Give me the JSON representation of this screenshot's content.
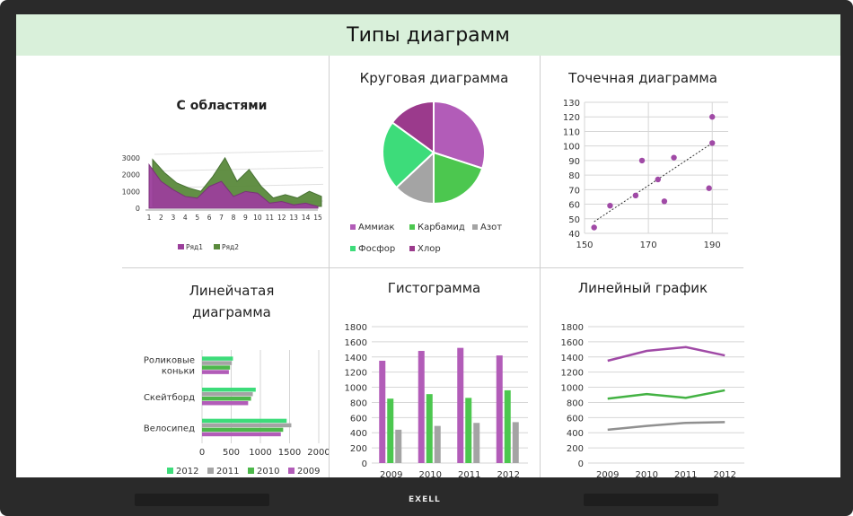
{
  "title": "Типы диаграмм",
  "brand": "EXELL",
  "chart_data": [
    {
      "type": "area",
      "title": "С областями",
      "categories": [
        "1",
        "2",
        "3",
        "4",
        "5",
        "6",
        "7",
        "8",
        "9",
        "10",
        "11",
        "12",
        "13",
        "14",
        "15"
      ],
      "ylim": [
        0,
        3000
      ],
      "yticks": [
        0,
        1000,
        2000,
        3000
      ],
      "series": [
        {
          "name": "Ряд1",
          "color": "#9b3f9b",
          "values": [
            2600,
            1600,
            1100,
            700,
            600,
            1300,
            1600,
            700,
            1000,
            900,
            300,
            400,
            200,
            300,
            100
          ]
        },
        {
          "name": "Ряд2",
          "color": "#5a8a3c",
          "values": [
            2800,
            2000,
            1400,
            1100,
            900,
            1800,
            2900,
            1500,
            2200,
            1200,
            500,
            700,
            500,
            900,
            600
          ]
        }
      ]
    },
    {
      "type": "pie",
      "title": "Круговая диаграмма",
      "series": [
        {
          "name": "Аммиак",
          "value": 30,
          "color": "#b25cb8"
        },
        {
          "name": "Карбамид",
          "value": 20,
          "color": "#4cc74f"
        },
        {
          "name": "Азот",
          "value": 13,
          "color": "#a4a4a4"
        },
        {
          "name": "Фосфор",
          "value": 22,
          "color": "#3ddc7a"
        },
        {
          "name": "Хлор",
          "value": 15,
          "color": "#9b3a8c"
        }
      ]
    },
    {
      "type": "scatter",
      "title": "Точечная диаграмма",
      "xlim": [
        150,
        195
      ],
      "xticks": [
        150,
        170,
        190
      ],
      "ylim": [
        40,
        130
      ],
      "yticks": [
        40,
        50,
        60,
        70,
        80,
        90,
        100,
        110,
        120,
        130
      ],
      "points": [
        [
          153,
          44
        ],
        [
          158,
          59
        ],
        [
          166,
          66
        ],
        [
          168,
          90
        ],
        [
          173,
          77
        ],
        [
          175,
          62
        ],
        [
          178,
          92
        ],
        [
          189,
          71
        ],
        [
          190,
          120
        ],
        [
          190,
          102
        ]
      ],
      "trendline": [
        [
          153,
          48
        ],
        [
          190,
          102
        ]
      ],
      "color": "#a04aa6"
    },
    {
      "type": "bar",
      "title": "Линейчатая диаграмма",
      "orientation": "horizontal",
      "categories": [
        "Роликовые коньки",
        "Скейтборд",
        "Велосипед"
      ],
      "xlim": [
        0,
        2000
      ],
      "xticks": [
        0,
        500,
        1000,
        1500,
        2000
      ],
      "series": [
        {
          "name": "2012",
          "color": "#3ddc7a",
          "values": [
            530,
            920,
            1450
          ]
        },
        {
          "name": "2011",
          "color": "#a4a4a4",
          "values": [
            510,
            870,
            1530
          ]
        },
        {
          "name": "2010",
          "color": "#4cb84a",
          "values": [
            480,
            840,
            1390
          ]
        },
        {
          "name": "2009",
          "color": "#b25cb8",
          "values": [
            460,
            790,
            1350
          ]
        }
      ]
    },
    {
      "type": "bar",
      "title": "Гистограмма",
      "categories": [
        "2009",
        "2010",
        "2011",
        "2012"
      ],
      "ylim": [
        0,
        1800
      ],
      "yticks": [
        0,
        200,
        400,
        600,
        800,
        1000,
        1200,
        1400,
        1600,
        1800
      ],
      "series": [
        {
          "name": "2009",
          "color": "#b25cb8",
          "values": [
            1350,
            1480,
            1520,
            1420
          ]
        },
        {
          "name": "2010",
          "color": "#4cc74f",
          "values": [
            850,
            910,
            860,
            960
          ]
        },
        {
          "name": "2011",
          "color": "#a4a4a4",
          "values": [
            440,
            490,
            530,
            540
          ]
        }
      ]
    },
    {
      "type": "line",
      "title": "Линейный график",
      "categories": [
        "2009",
        "2010",
        "2011",
        "2012"
      ],
      "ylim": [
        0,
        1800
      ],
      "yticks": [
        0,
        200,
        400,
        600,
        800,
        1000,
        1200,
        1400,
        1600,
        1800
      ],
      "series": [
        {
          "name": "2009",
          "color": "#a04aa6",
          "values": [
            1350,
            1480,
            1530,
            1420
          ]
        },
        {
          "name": "2010",
          "color": "#43b243",
          "values": [
            850,
            910,
            860,
            960
          ]
        },
        {
          "name": "2011",
          "color": "#909090",
          "values": [
            440,
            490,
            530,
            540
          ]
        }
      ]
    }
  ]
}
